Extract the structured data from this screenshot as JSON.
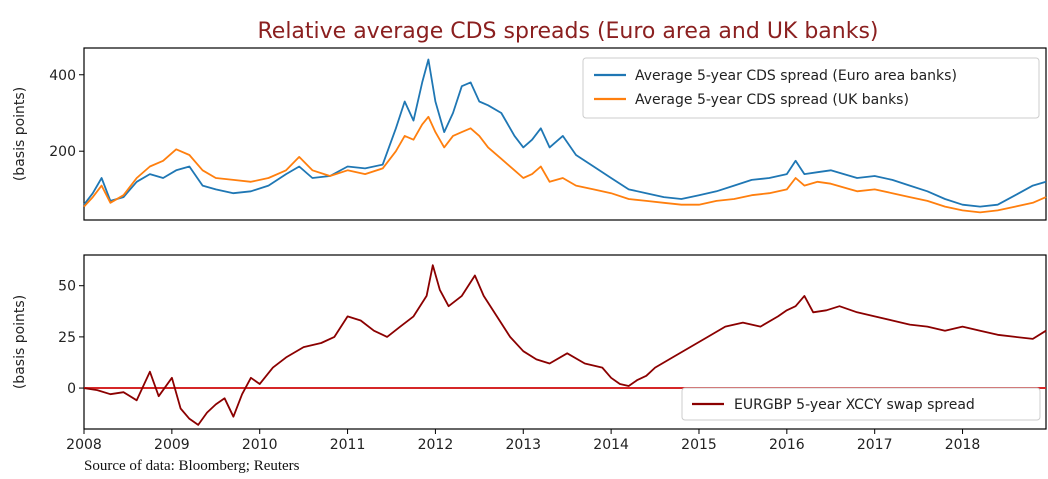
{
  "chart_data": [
    {
      "type": "line",
      "title": "Relative average CDS spreads (Euro area and UK banks)",
      "ylabel": "(basis points)",
      "xlim": [
        2008,
        2018.95
      ],
      "ylim": [
        20,
        470
      ],
      "yticks": [
        200,
        400
      ],
      "legend_position": "top-right",
      "grid": false,
      "series": [
        {
          "name": "Average 5-year CDS spread (Euro area banks)",
          "color": "#1f77b4",
          "x": [
            2008.0,
            2008.1,
            2008.2,
            2008.3,
            2008.45,
            2008.6,
            2008.75,
            2008.9,
            2009.05,
            2009.2,
            2009.35,
            2009.5,
            2009.7,
            2009.9,
            2010.1,
            2010.3,
            2010.45,
            2010.6,
            2010.8,
            2011.0,
            2011.2,
            2011.4,
            2011.55,
            2011.65,
            2011.75,
            2011.85,
            2011.92,
            2012.0,
            2012.1,
            2012.2,
            2012.3,
            2012.4,
            2012.5,
            2012.6,
            2012.75,
            2012.9,
            2013.0,
            2013.1,
            2013.2,
            2013.3,
            2013.45,
            2013.6,
            2013.8,
            2014.0,
            2014.2,
            2014.4,
            2014.6,
            2014.8,
            2015.0,
            2015.2,
            2015.4,
            2015.6,
            2015.8,
            2016.0,
            2016.1,
            2016.2,
            2016.35,
            2016.5,
            2016.65,
            2016.8,
            2017.0,
            2017.2,
            2017.4,
            2017.6,
            2017.8,
            2018.0,
            2018.2,
            2018.4,
            2018.6,
            2018.8,
            2018.95
          ],
          "y": [
            60,
            90,
            130,
            70,
            80,
            120,
            140,
            130,
            150,
            160,
            110,
            100,
            90,
            95,
            110,
            140,
            160,
            130,
            135,
            160,
            155,
            165,
            260,
            330,
            280,
            380,
            440,
            330,
            250,
            300,
            370,
            380,
            330,
            320,
            300,
            240,
            210,
            230,
            260,
            210,
            240,
            190,
            160,
            130,
            100,
            90,
            80,
            75,
            85,
            95,
            110,
            125,
            130,
            140,
            175,
            140,
            145,
            150,
            140,
            130,
            135,
            125,
            110,
            95,
            75,
            60,
            55,
            60,
            85,
            110,
            120
          ]
        },
        {
          "name": "Average 5-year CDS spread (UK banks)",
          "color": "#ff7f0e",
          "x": [
            2008.0,
            2008.1,
            2008.2,
            2008.3,
            2008.45,
            2008.6,
            2008.75,
            2008.9,
            2009.05,
            2009.2,
            2009.35,
            2009.5,
            2009.7,
            2009.9,
            2010.1,
            2010.3,
            2010.45,
            2010.6,
            2010.8,
            2011.0,
            2011.2,
            2011.4,
            2011.55,
            2011.65,
            2011.75,
            2011.85,
            2011.92,
            2012.0,
            2012.1,
            2012.2,
            2012.3,
            2012.4,
            2012.5,
            2012.6,
            2012.75,
            2012.9,
            2013.0,
            2013.1,
            2013.2,
            2013.3,
            2013.45,
            2013.6,
            2013.8,
            2014.0,
            2014.2,
            2014.4,
            2014.6,
            2014.8,
            2015.0,
            2015.2,
            2015.4,
            2015.6,
            2015.8,
            2016.0,
            2016.1,
            2016.2,
            2016.35,
            2016.5,
            2016.65,
            2016.8,
            2017.0,
            2017.2,
            2017.4,
            2017.6,
            2017.8,
            2018.0,
            2018.2,
            2018.4,
            2018.6,
            2018.8,
            2018.95
          ],
          "y": [
            55,
            80,
            110,
            65,
            85,
            130,
            160,
            175,
            205,
            190,
            150,
            130,
            125,
            120,
            130,
            150,
            185,
            150,
            135,
            150,
            140,
            155,
            200,
            240,
            230,
            270,
            290,
            250,
            210,
            240,
            250,
            260,
            240,
            210,
            180,
            150,
            130,
            140,
            160,
            120,
            130,
            110,
            100,
            90,
            75,
            70,
            65,
            60,
            60,
            70,
            75,
            85,
            90,
            100,
            130,
            110,
            120,
            115,
            105,
            95,
            100,
            90,
            80,
            70,
            55,
            45,
            40,
            45,
            55,
            65,
            80
          ]
        }
      ]
    },
    {
      "type": "line",
      "ylabel": "(basis points)",
      "xlim": [
        2008,
        2018.95
      ],
      "ylim": [
        -20,
        65
      ],
      "yticks": [
        0,
        25,
        50
      ],
      "xticks": [
        "2008",
        "2009",
        "2010",
        "2011",
        "2012",
        "2013",
        "2014",
        "2015",
        "2016",
        "2017",
        "2018"
      ],
      "zero_line_color": "#d62728",
      "legend_position": "bottom-right",
      "grid": false,
      "series": [
        {
          "name": "EURGBP 5-year XCCY swap spread",
          "color": "#8b0000",
          "x": [
            2008.0,
            2008.15,
            2008.3,
            2008.45,
            2008.6,
            2008.75,
            2008.85,
            2009.0,
            2009.1,
            2009.2,
            2009.3,
            2009.4,
            2009.5,
            2009.6,
            2009.7,
            2009.8,
            2009.9,
            2010.0,
            2010.15,
            2010.3,
            2010.5,
            2010.7,
            2010.85,
            2011.0,
            2011.15,
            2011.3,
            2011.45,
            2011.6,
            2011.75,
            2011.9,
            2011.97,
            2012.05,
            2012.15,
            2012.3,
            2012.45,
            2012.55,
            2012.7,
            2012.85,
            2013.0,
            2013.15,
            2013.3,
            2013.5,
            2013.7,
            2013.9,
            2014.0,
            2014.1,
            2014.2,
            2014.3,
            2014.4,
            2014.5,
            2014.7,
            2014.9,
            2015.1,
            2015.3,
            2015.5,
            2015.7,
            2015.9,
            2016.0,
            2016.1,
            2016.2,
            2016.3,
            2016.45,
            2016.6,
            2016.8,
            2017.0,
            2017.2,
            2017.4,
            2017.6,
            2017.8,
            2018.0,
            2018.2,
            2018.4,
            2018.6,
            2018.8,
            2018.95
          ],
          "y": [
            0,
            -1,
            -3,
            -2,
            -6,
            8,
            -4,
            5,
            -10,
            -15,
            -18,
            -12,
            -8,
            -5,
            -14,
            -3,
            5,
            2,
            10,
            15,
            20,
            22,
            25,
            35,
            33,
            28,
            25,
            30,
            35,
            45,
            60,
            48,
            40,
            45,
            55,
            45,
            35,
            25,
            18,
            14,
            12,
            17,
            12,
            10,
            5,
            2,
            1,
            4,
            6,
            10,
            15,
            20,
            25,
            30,
            32,
            30,
            35,
            38,
            40,
            45,
            37,
            38,
            40,
            37,
            35,
            33,
            31,
            30,
            28,
            30,
            28,
            26,
            25,
            24,
            28
          ]
        }
      ]
    }
  ],
  "source_note": "Source of data: Bloomberg; Reuters"
}
